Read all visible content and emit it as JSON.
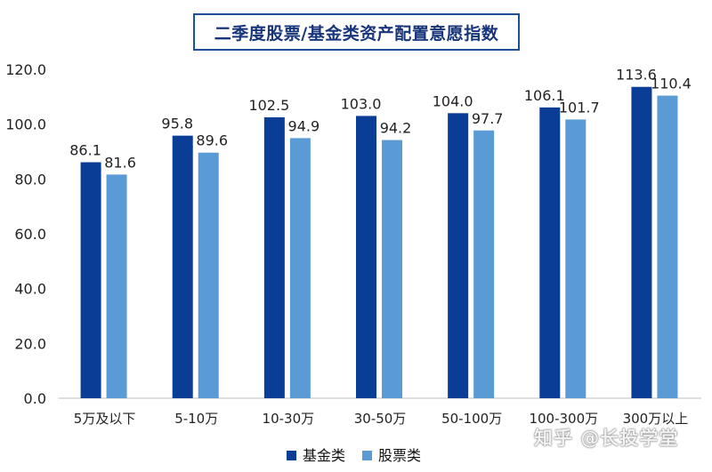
{
  "chart_data": {
    "type": "bar",
    "title": "二季度股票/基金类资产配置意愿指数",
    "categories": [
      "5万及以下",
      "5-10万",
      "10-30万",
      "30-50万",
      "50-100万",
      "100-300万",
      "300万以上"
    ],
    "series": [
      {
        "name": "基金类",
        "color": "#0a3d96",
        "values": [
          86.1,
          95.8,
          102.5,
          103.0,
          104.0,
          106.1,
          113.6
        ]
      },
      {
        "name": "股票类",
        "color": "#5b9bd5",
        "values": [
          81.6,
          89.6,
          94.9,
          94.2,
          97.7,
          101.7,
          110.4
        ]
      }
    ],
    "ylim": [
      0,
      120
    ],
    "yticks": [
      "0.0",
      "20.0",
      "40.0",
      "60.0",
      "80.0",
      "100.0",
      "120.0"
    ],
    "ytick_values": [
      0,
      20,
      40,
      60,
      80,
      100,
      120
    ],
    "xlabel": "",
    "ylabel": "",
    "grid": false,
    "legend_position": "bottom"
  },
  "watermark": "知乎 @长投学堂"
}
